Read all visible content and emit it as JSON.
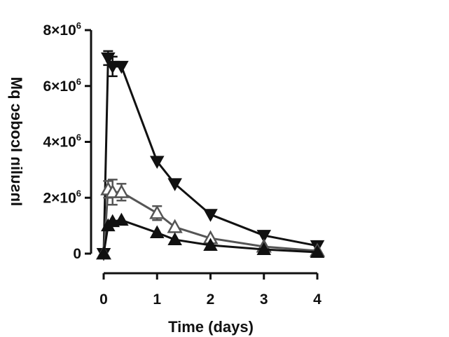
{
  "chart_data": {
    "type": "line",
    "title": "",
    "xlabel": "Time (days)",
    "ylabel": "Insulin Icodec pM",
    "xlim": [
      0,
      4
    ],
    "ylim": [
      0,
      8000000
    ],
    "x_ticks": [
      0,
      1,
      2,
      3,
      4
    ],
    "x_tick_labels": [
      "0",
      "1",
      "2",
      "3",
      "4"
    ],
    "y_ticks": [
      0,
      2000000,
      4000000,
      6000000,
      8000000
    ],
    "y_tick_labels": [
      {
        "base": "0",
        "exp": ""
      },
      {
        "base": "2×10",
        "exp": "6"
      },
      {
        "base": "4×10",
        "exp": "6"
      },
      {
        "base": "6×10",
        "exp": "6"
      },
      {
        "base": "8×10",
        "exp": "6"
      }
    ],
    "grid": false,
    "legend": "none",
    "series": [
      {
        "marker": "triangle-down",
        "color": "#111111",
        "filled": true,
        "x": [
          0,
          0.083,
          0.167,
          0.333,
          1,
          1.333,
          2,
          3,
          4
        ],
        "y": [
          0,
          7000000,
          6700000,
          6700000,
          3300000,
          2500000,
          1400000,
          650000,
          280000
        ],
        "err": [
          0,
          250000,
          350000,
          0,
          0,
          0,
          0,
          0,
          0
        ]
      },
      {
        "marker": "triangle-up-open",
        "color": "#555555",
        "filled": false,
        "x": [
          0,
          0.083,
          0.167,
          0.333,
          1,
          1.333,
          2,
          3,
          4
        ],
        "y": [
          0,
          2300000,
          2200000,
          2200000,
          1450000,
          950000,
          550000,
          250000,
          100000
        ],
        "err": [
          0,
          300000,
          450000,
          300000,
          250000,
          0,
          0,
          0,
          0
        ]
      },
      {
        "marker": "triangle-up",
        "color": "#111111",
        "filled": true,
        "x": [
          0,
          0.083,
          0.167,
          0.333,
          1,
          1.333,
          2,
          3,
          4
        ],
        "y": [
          0,
          1000000,
          1150000,
          1200000,
          750000,
          500000,
          300000,
          150000,
          50000
        ],
        "err": [
          0,
          0,
          0,
          0,
          0,
          0,
          0,
          0,
          0
        ]
      }
    ]
  }
}
